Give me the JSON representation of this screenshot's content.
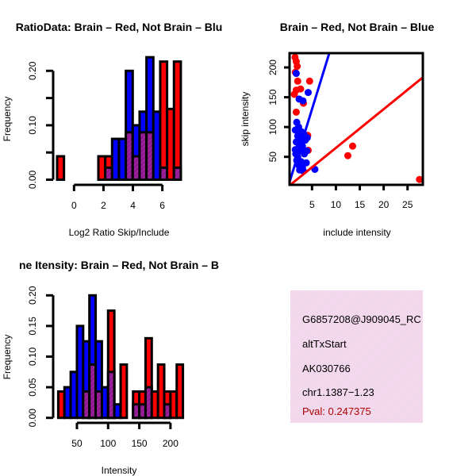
{
  "colors": {
    "red": "#ff0000",
    "blue": "#0000ff",
    "overlap": "#a020a0",
    "pval": "#b00000"
  },
  "chart_data": [
    {
      "type": "bar",
      "title": "RatioData: Brain – Red, Not Brain – Blu",
      "xlabel": "Log2 Ratio Skip/Include",
      "ylabel": "Frequency",
      "bin_start": -1.15,
      "bin_width": 0.467,
      "xticks": [
        0,
        2,
        4,
        6
      ],
      "yticks": [
        "0.00",
        "0.10",
        "0.20"
      ],
      "ylim": [
        0,
        0.2
      ],
      "series": [
        {
          "name": "Brain",
          "color": "red",
          "values": [
            0.043,
            0,
            0,
            0,
            0,
            0,
            0.043,
            0.043,
            0,
            0,
            0.087,
            0.043,
            0.087,
            0.087,
            0,
            0.217,
            0.13,
            0.217
          ]
        },
        {
          "name": "Not Brain",
          "color": "blue",
          "values": [
            0,
            0,
            0,
            0,
            0,
            0,
            0,
            0.022,
            0.075,
            0.075,
            0.2,
            0.1,
            0.125,
            0.225,
            0.125,
            0.022,
            0,
            0.022
          ]
        }
      ]
    },
    {
      "type": "scatter",
      "title": "Brain – Red, Not Brain – Blue",
      "xlabel": "include intensity",
      "ylabel": "skip intensity",
      "xlim": [
        0.3,
        28.2
      ],
      "ylim": [
        3,
        224
      ],
      "xticks": [
        5,
        10,
        15,
        20,
        25
      ],
      "yticks": [
        50,
        100,
        150,
        200
      ],
      "series": [
        {
          "name": "Brain",
          "color": "red",
          "fit_slope": 6.5,
          "points": [
            [
              1.45,
              217
            ],
            [
              1.7,
              210
            ],
            [
              1.9,
              202
            ],
            [
              1.5,
              192
            ],
            [
              2.0,
              177
            ],
            [
              4.5,
              177
            ],
            [
              1.7,
              162
            ],
            [
              2.6,
              164
            ],
            [
              1.3,
              155
            ],
            [
              1.7,
              125
            ],
            [
              3.2,
              140
            ],
            [
              4.1,
              86
            ],
            [
              4.2,
              61
            ],
            [
              12.5,
              52
            ],
            [
              13.5,
              68
            ],
            [
              27.5,
              12
            ]
          ]
        },
        {
          "name": "Not Brain",
          "color": "blue",
          "fit_slope": 26,
          "points": [
            [
              1.7,
              190
            ],
            [
              4.2,
              158
            ],
            [
              2.3,
              147
            ],
            [
              3.1,
              144
            ],
            [
              1.8,
              108
            ],
            [
              2.2,
              100
            ],
            [
              1.5,
              95
            ],
            [
              2.8,
              92
            ],
            [
              3.3,
              88
            ],
            [
              2.0,
              85
            ],
            [
              2.5,
              80
            ],
            [
              3.6,
              78
            ],
            [
              1.7,
              75
            ],
            [
              2.3,
              70
            ],
            [
              3.0,
              68
            ],
            [
              1.5,
              62
            ],
            [
              2.6,
              60
            ],
            [
              3.4,
              55
            ],
            [
              2.0,
              50
            ],
            [
              1.8,
              44
            ],
            [
              2.7,
              42
            ],
            [
              3.8,
              40
            ],
            [
              2.2,
              36
            ],
            [
              3.0,
              32
            ],
            [
              2.4,
              28
            ],
            [
              3.2,
              26
            ],
            [
              1.6,
              55
            ],
            [
              4.0,
              82
            ],
            [
              3.9,
              60
            ],
            [
              5.6,
              29
            ]
          ]
        }
      ]
    },
    {
      "type": "bar",
      "title": "ne Itensity: Brain – Red, Not Brain – B",
      "xlabel": "Intensity",
      "ylabel": "Frequency",
      "bin_start": 20,
      "bin_width": 10,
      "xticks": [
        50,
        100,
        150,
        200
      ],
      "yticks": [
        "0.00",
        "0.05",
        "0.10",
        "0.15",
        "0.20"
      ],
      "ylim": [
        0,
        0.2
      ],
      "series": [
        {
          "name": "Brain",
          "color": "red",
          "values": [
            0.043,
            0,
            0,
            0,
            0.043,
            0.087,
            0.043,
            0,
            0.175,
            0,
            0.087,
            0,
            0.043,
            0.043,
            0.13,
            0.043,
            0.087,
            0.043,
            0.043,
            0.087
          ]
        },
        {
          "name": "Not Brain",
          "color": "blue",
          "values": [
            0,
            0.05,
            0.075,
            0.15,
            0.125,
            0.2,
            0.125,
            0.05,
            0.075,
            0.022,
            0,
            0,
            0.022,
            0.022,
            0.05,
            0,
            0,
            0.022,
            0,
            0
          ]
        }
      ]
    }
  ],
  "info": {
    "id": "G6857208@J909045_RC",
    "event": "altTxStart",
    "accession": "AK030766",
    "location": "chr1.1387−1.23",
    "pval": "Pval: 0.247375"
  }
}
